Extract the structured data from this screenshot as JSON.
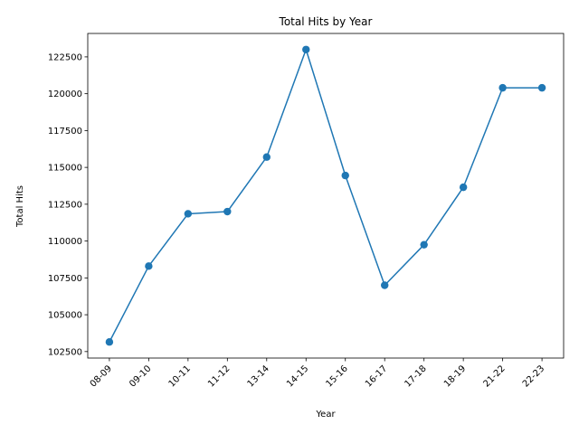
{
  "chart_data": {
    "type": "line",
    "title": "Total Hits by Year",
    "xlabel": "Year",
    "ylabel": "Total Hits",
    "categories": [
      "08-09",
      "09-10",
      "10-11",
      "11-12",
      "13-14",
      "14-15",
      "15-16",
      "16-17",
      "17-18",
      "18-19",
      "21-22",
      "22-23"
    ],
    "series": [
      {
        "values": [
          103150,
          108300,
          111850,
          112000,
          115700,
          123000,
          114450,
          107000,
          109750,
          113650,
          120400,
          120400
        ],
        "color": "#1f77b4",
        "marker": "circle"
      }
    ],
    "yticks": [
      102500,
      105000,
      107500,
      110000,
      112500,
      115000,
      117500,
      120000,
      122500
    ],
    "ylim": [
      102060,
      124090
    ],
    "grid": false,
    "legend": "none"
  }
}
